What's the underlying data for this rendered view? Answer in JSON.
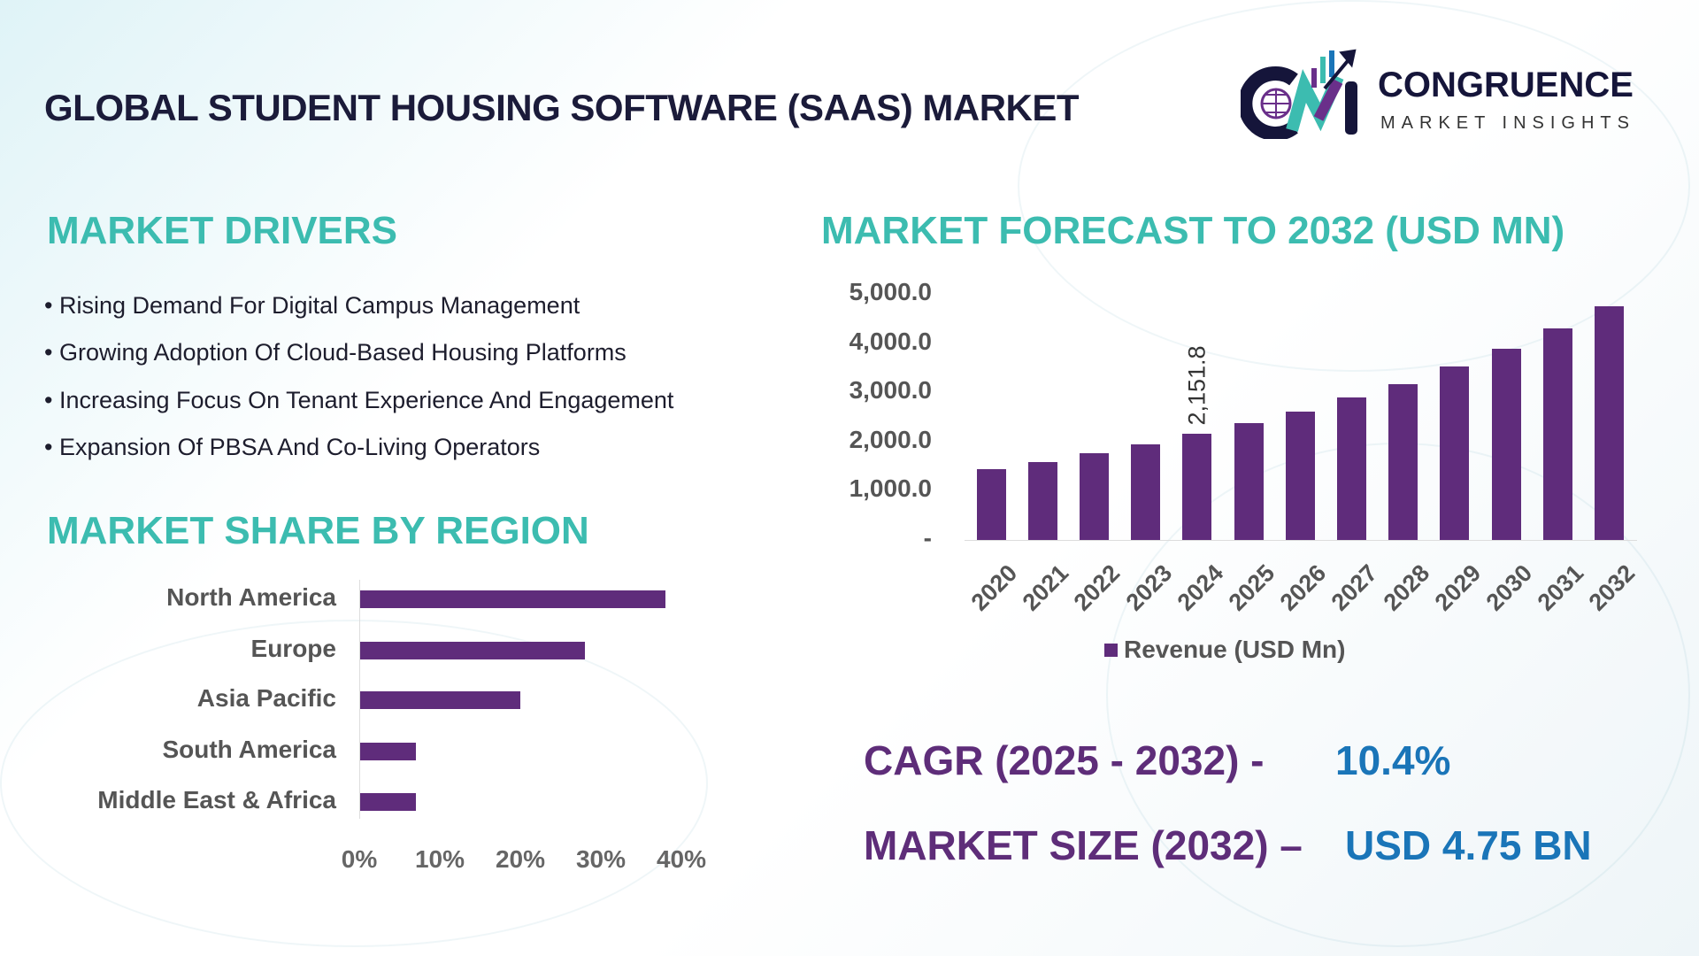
{
  "title": "GLOBAL STUDENT HOUSING SOFTWARE (SAAS) MARKET",
  "logo": {
    "name": "CONGRUENCE",
    "tagline": "MARKET INSIGHTS",
    "mark": "CM"
  },
  "drivers": {
    "heading": "MARKET DRIVERS",
    "items": [
      "Rising Demand For Digital Campus Management",
      "Growing Adoption Of Cloud-Based Housing Platforms",
      "Increasing Focus On Tenant Experience And Engagement",
      "Expansion Of PBSA And Co-Living Operators"
    ]
  },
  "region": {
    "heading": "MARKET SHARE BY REGION"
  },
  "forecast": {
    "heading": "MARKET FORECAST TO 2032 (USD MN)"
  },
  "kpis": {
    "cagr_label": "CAGR (2025 - 2032) -",
    "cagr_value": "10.4%",
    "size_label": "MARKET SIZE (2032) –",
    "size_value": "USD 4.75 BN"
  },
  "colors": {
    "bar": "#5f2c7b",
    "heading": "#3cbcb0",
    "kpi_label": "#5e2d79",
    "kpi_value": "#1a75b8"
  },
  "chart_data": [
    {
      "type": "bar",
      "orientation": "horizontal",
      "categories": [
        "North America",
        "Europe",
        "Asia Pacific",
        "South America",
        "Middle East & Africa"
      ],
      "values": [
        38,
        28,
        20,
        7,
        7
      ],
      "unit": "%",
      "xlim": [
        0,
        40
      ],
      "xticks": [
        "0%",
        "10%",
        "20%",
        "30%",
        "40%"
      ],
      "grid": false
    },
    {
      "type": "bar",
      "categories": [
        "2020",
        "2021",
        "2022",
        "2023",
        "2024",
        "2025",
        "2026",
        "2027",
        "2028",
        "2029",
        "2030",
        "2031",
        "2032"
      ],
      "series": [
        {
          "name": "Revenue (USD Mn)",
          "values": [
            1430,
            1590,
            1760,
            1940,
            2151.8,
            2380,
            2600,
            2890,
            3170,
            3520,
            3880,
            4300,
            4750
          ]
        }
      ],
      "data_labels": [
        {
          "category": "2024",
          "text": "2,151.8"
        }
      ],
      "yticks": [
        "-",
        "1,000.0",
        "2,000.0",
        "3,000.0",
        "4,000.0",
        "5,000.0"
      ],
      "ylim": [
        0,
        5000
      ],
      "legend": "bottom",
      "grid": false
    }
  ]
}
